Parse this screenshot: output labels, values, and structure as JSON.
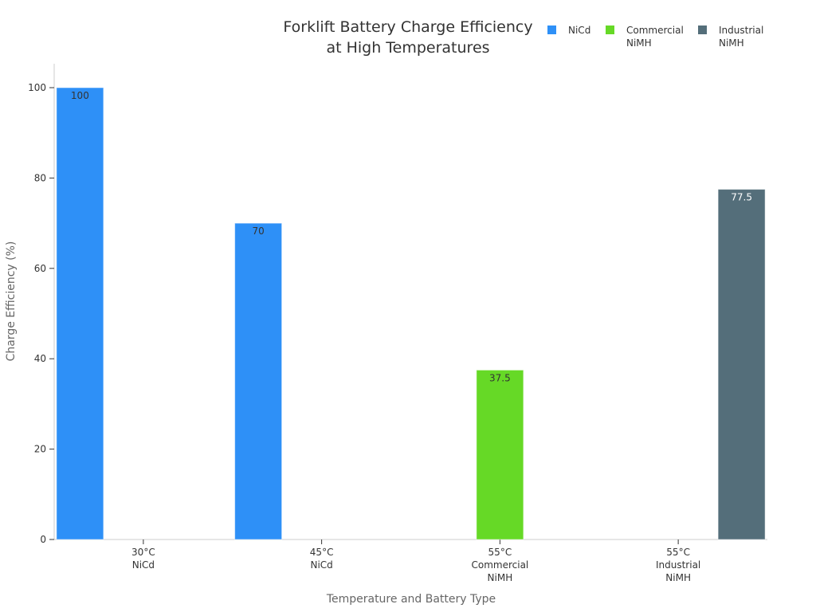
{
  "chart_data": {
    "type": "bar",
    "title": [
      "Forklift Battery Charge Efficiency",
      "at High Temperatures"
    ],
    "xlabel": "Temperature and Battery Type",
    "ylabel": "Charge Efficiency (%)",
    "ylim": [
      0,
      100
    ],
    "yticks": [
      0,
      20,
      40,
      60,
      80,
      100
    ],
    "grid": false,
    "legend_position": "top-right",
    "categories": [
      [
        "30°C",
        "NiCd"
      ],
      [
        "45°C",
        "NiCd"
      ],
      [
        "55°C",
        "Commercial",
        "NiMH"
      ],
      [
        "55°C",
        "Industrial",
        "NiMH"
      ]
    ],
    "series": [
      {
        "name": [
          "NiCd"
        ],
        "color": "#2e90f7",
        "label_color": "#333333",
        "values": [
          100,
          70,
          null,
          null
        ]
      },
      {
        "name": [
          "Commercial",
          "NiMH"
        ],
        "color": "#66d926",
        "label_color": "#333333",
        "values": [
          null,
          null,
          37.5,
          null
        ]
      },
      {
        "name": [
          "Industrial",
          "NiMH"
        ],
        "color": "#546e7a",
        "label_color": "#ffffff",
        "values": [
          null,
          null,
          null,
          77.5
        ]
      }
    ]
  }
}
